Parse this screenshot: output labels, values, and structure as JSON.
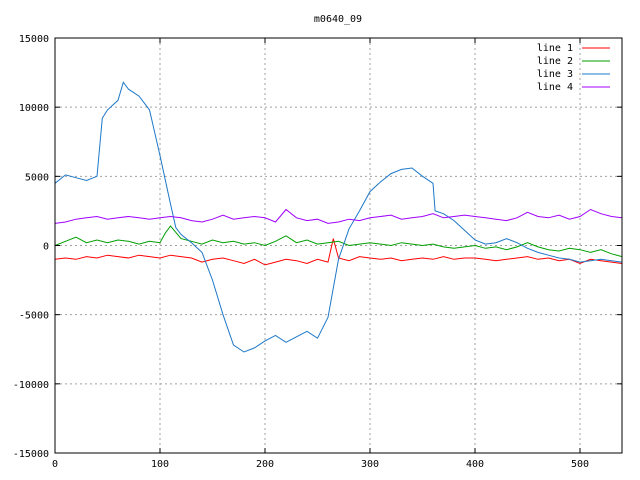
{
  "chart_data": {
    "type": "line",
    "title": "m0640_09",
    "xlabel": "",
    "ylabel": "",
    "xlim": [
      0,
      540
    ],
    "ylim": [
      -15000,
      15000
    ],
    "xticks": [
      0,
      100,
      200,
      300,
      400,
      500
    ],
    "yticks": [
      -15000,
      -10000,
      -5000,
      0,
      5000,
      10000,
      15000
    ],
    "grid": true,
    "legend_position": "top-right",
    "series": [
      {
        "name": "line 1",
        "color": "#ff0000",
        "x": [
          0,
          10,
          20,
          30,
          40,
          50,
          60,
          70,
          80,
          90,
          100,
          110,
          120,
          130,
          140,
          150,
          160,
          170,
          180,
          190,
          200,
          210,
          220,
          230,
          240,
          250,
          260,
          265,
          270,
          280,
          290,
          300,
          310,
          320,
          330,
          340,
          350,
          360,
          370,
          380,
          390,
          400,
          410,
          420,
          430,
          440,
          450,
          460,
          470,
          480,
          490,
          500,
          510,
          520,
          530,
          540
        ],
        "y": [
          -1000,
          -900,
          -1000,
          -800,
          -900,
          -700,
          -800,
          -900,
          -700,
          -800,
          -900,
          -700,
          -800,
          -900,
          -1200,
          -1000,
          -900,
          -1100,
          -1300,
          -1000,
          -1400,
          -1200,
          -1000,
          -1100,
          -1300,
          -1000,
          -1200,
          500,
          -900,
          -1100,
          -800,
          -900,
          -1000,
          -900,
          -1100,
          -1000,
          -900,
          -1000,
          -800,
          -1000,
          -900,
          -900,
          -1000,
          -1100,
          -1000,
          -900,
          -800,
          -1000,
          -900,
          -1100,
          -1000,
          -1300,
          -1000,
          -1100,
          -1200,
          -1300
        ]
      },
      {
        "name": "line 2",
        "color": "#00a000",
        "x": [
          0,
          10,
          20,
          30,
          40,
          50,
          60,
          70,
          80,
          90,
          100,
          105,
          110,
          120,
          130,
          140,
          150,
          160,
          170,
          180,
          190,
          200,
          210,
          220,
          230,
          240,
          250,
          260,
          270,
          280,
          290,
          300,
          310,
          320,
          330,
          340,
          350,
          360,
          370,
          380,
          390,
          400,
          410,
          420,
          430,
          440,
          450,
          460,
          470,
          480,
          490,
          500,
          510,
          520,
          530,
          540
        ],
        "y": [
          0,
          300,
          600,
          200,
          400,
          200,
          400,
          300,
          100,
          300,
          200,
          900,
          1400,
          500,
          300,
          100,
          400,
          200,
          300,
          100,
          200,
          0,
          300,
          700,
          200,
          400,
          100,
          200,
          300,
          0,
          100,
          200,
          100,
          0,
          200,
          100,
          0,
          100,
          -100,
          -200,
          -100,
          0,
          -200,
          -100,
          -300,
          -100,
          200,
          -100,
          -300,
          -400,
          -200,
          -300,
          -500,
          -300,
          -600,
          -800
        ]
      },
      {
        "name": "line 3",
        "color": "#1e78c8",
        "x": [
          0,
          10,
          20,
          30,
          40,
          45,
          50,
          60,
          65,
          70,
          80,
          90,
          100,
          110,
          115,
          120,
          130,
          140,
          150,
          160,
          170,
          180,
          190,
          200,
          210,
          220,
          230,
          240,
          250,
          260,
          270,
          280,
          290,
          300,
          310,
          320,
          330,
          340,
          350,
          360,
          362,
          370,
          380,
          390,
          400,
          410,
          420,
          430,
          440,
          450,
          460,
          470,
          480,
          490,
          500,
          510,
          520,
          530,
          540
        ],
        "y": [
          4500,
          5100,
          4900,
          4700,
          5000,
          9200,
          9800,
          10500,
          11800,
          11300,
          10800,
          9800,
          6500,
          3000,
          1300,
          800,
          200,
          -500,
          -2500,
          -5000,
          -7200,
          -7700,
          -7400,
          -6900,
          -6500,
          -7000,
          -6600,
          -6200,
          -6700,
          -5200,
          -1000,
          1200,
          2500,
          3900,
          4600,
          5200,
          5500,
          5600,
          5000,
          4500,
          2500,
          2300,
          1800,
          1100,
          400,
          100,
          200,
          500,
          200,
          -200,
          -500,
          -700,
          -900,
          -1000,
          -1200,
          -1100,
          -1000,
          -1100,
          -1200
        ]
      },
      {
        "name": "line 4",
        "color": "#a000ff",
        "x": [
          0,
          10,
          20,
          30,
          40,
          50,
          60,
          70,
          80,
          90,
          100,
          110,
          120,
          130,
          140,
          150,
          160,
          170,
          180,
          190,
          200,
          210,
          220,
          230,
          240,
          250,
          260,
          270,
          280,
          290,
          300,
          310,
          320,
          330,
          340,
          350,
          360,
          370,
          380,
          390,
          400,
          410,
          420,
          430,
          440,
          450,
          460,
          470,
          480,
          490,
          500,
          510,
          520,
          530,
          540
        ],
        "y": [
          1600,
          1700,
          1900,
          2000,
          2100,
          1900,
          2000,
          2100,
          2000,
          1900,
          2000,
          2100,
          2000,
          1800,
          1700,
          1900,
          2200,
          1900,
          2000,
          2100,
          2000,
          1700,
          2600,
          2000,
          1800,
          1900,
          1600,
          1700,
          1900,
          1800,
          2000,
          2100,
          2200,
          1900,
          2000,
          2100,
          2300,
          2000,
          2100,
          2200,
          2100,
          2000,
          1900,
          1800,
          2000,
          2400,
          2100,
          2000,
          2200,
          1900,
          2100,
          2600,
          2300,
          2100,
          2000
        ]
      }
    ]
  }
}
